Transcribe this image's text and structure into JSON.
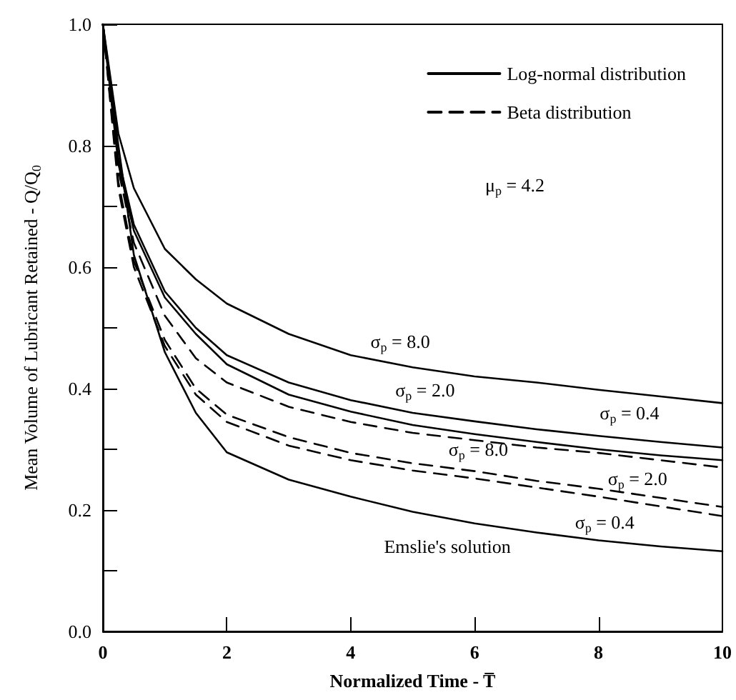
{
  "chart_data": {
    "type": "line",
    "xlabel": "Normalized Time - T̅",
    "ylabel": "Mean Volume of Lubricant Retained - Q/Q$_{0}$",
    "x": [
      0,
      0.25,
      0.5,
      1,
      1.5,
      2,
      3,
      4,
      5,
      6,
      7,
      8,
      9,
      10
    ],
    "series": [
      {
        "name": "Log-normal distribution",
        "color": "#000000",
        "line_style": "solid",
        "values": [
          1,
          0.82,
          0.73,
          0.63,
          0.58,
          0.54,
          0.49,
          0.455,
          0.435,
          0.42,
          0.41,
          0.398,
          0.387,
          0.376
        ]
      },
      {
        "color": "#000000",
        "line_style": "solid",
        "values": [
          1,
          0.78,
          0.67,
          0.56,
          0.5,
          0.455,
          0.41,
          0.381,
          0.36,
          0.346,
          0.333,
          0.322,
          0.312,
          0.303
        ]
      },
      {
        "color": "#000000",
        "line_style": "solid",
        "values": [
          1,
          0.77,
          0.66,
          0.55,
          0.49,
          0.44,
          0.39,
          0.362,
          0.34,
          0.325,
          0.312,
          0.3,
          0.29,
          0.282
        ]
      },
      {
        "name": "Beta distribution",
        "color": "#000000",
        "line_style": "dashed",
        "values": [
          1,
          0.76,
          0.64,
          0.52,
          0.45,
          0.41,
          0.37,
          0.345,
          0.327,
          0.315,
          0.303,
          0.294,
          0.282,
          0.27
        ]
      },
      {
        "color": "#000000",
        "line_style": "dashed",
        "values": [
          1,
          0.74,
          0.61,
          0.48,
          0.4,
          0.357,
          0.32,
          0.294,
          0.277,
          0.264,
          0.248,
          0.235,
          0.22,
          0.205
        ]
      },
      {
        "color": "#000000",
        "line_style": "dashed",
        "values": [
          1,
          0.73,
          0.6,
          0.47,
          0.39,
          0.345,
          0.306,
          0.282,
          0.265,
          0.252,
          0.237,
          0.222,
          0.206,
          0.19
        ]
      },
      {
        "color": "#000000",
        "line_style": "solid",
        "values": [
          1,
          0.8,
          0.62,
          0.46,
          0.36,
          0.295,
          0.25,
          0.222,
          0.197,
          0.178,
          0.163,
          0.15,
          0.14,
          0.132
        ]
      }
    ],
    "annotations": [
      "σ$_{p}$ = 8.0",
      "σ$_{p}$ = 2.0",
      "σ$_{p}$ = 0.4",
      "σ$_{p}$ = 8.0",
      "σ$_{p}$ = 2.0",
      "σ$_{p}$ = 0.4",
      "Emslie's solution",
      "μ$_{p}$ = 4.2"
    ],
    "xlim": [
      0,
      10
    ],
    "xticks": [
      0,
      2,
      4,
      6,
      8,
      10
    ],
    "ylim": [
      0,
      1
    ],
    "yticks": [
      {
        "value": 0,
        "label": "0.0"
      },
      {
        "value": 0.1,
        "label": null
      },
      {
        "value": 0.2,
        "label": "0.2"
      },
      {
        "value": 0.3,
        "label": null
      },
      {
        "value": 0.4,
        "label": "0.4"
      },
      {
        "value": 0.5,
        "label": null
      },
      {
        "value": 0.6,
        "label": "0.6"
      },
      {
        "value": 0.7,
        "label": null
      },
      {
        "value": 0.8,
        "label": "0.8"
      },
      {
        "value": 0.9,
        "label": null
      },
      {
        "value": 1,
        "label": "1.0"
      }
    ],
    "grid": false,
    "legend": "top right",
    "marker": "none"
  }
}
